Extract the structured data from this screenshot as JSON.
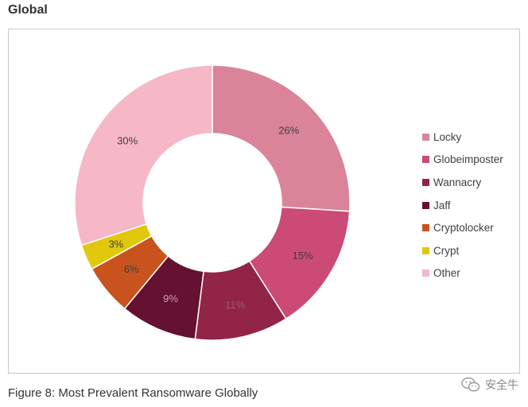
{
  "header": {
    "title": "Global"
  },
  "caption": "Figure 8: Most Prevalent Ransomware Globally",
  "watermark": {
    "text": "安全牛",
    "icon": "wechat-icon"
  },
  "chart_data": {
    "type": "pie",
    "donut": true,
    "title": "",
    "legend_position": "right",
    "categories": [
      "Locky",
      "Globeimposter",
      "Wannacry",
      "Jaff",
      "Cryptolocker",
      "Crypt",
      "Other"
    ],
    "values": [
      26,
      15,
      11,
      9,
      6,
      3,
      30
    ],
    "labels": [
      "26%",
      "15%",
      "11%",
      "9%",
      "6%",
      "3%",
      "30%"
    ],
    "colors": [
      "#d98498",
      "#cc4a76",
      "#922547",
      "#641132",
      "#c9531e",
      "#e2c80c",
      "#f6b7c7"
    ]
  }
}
